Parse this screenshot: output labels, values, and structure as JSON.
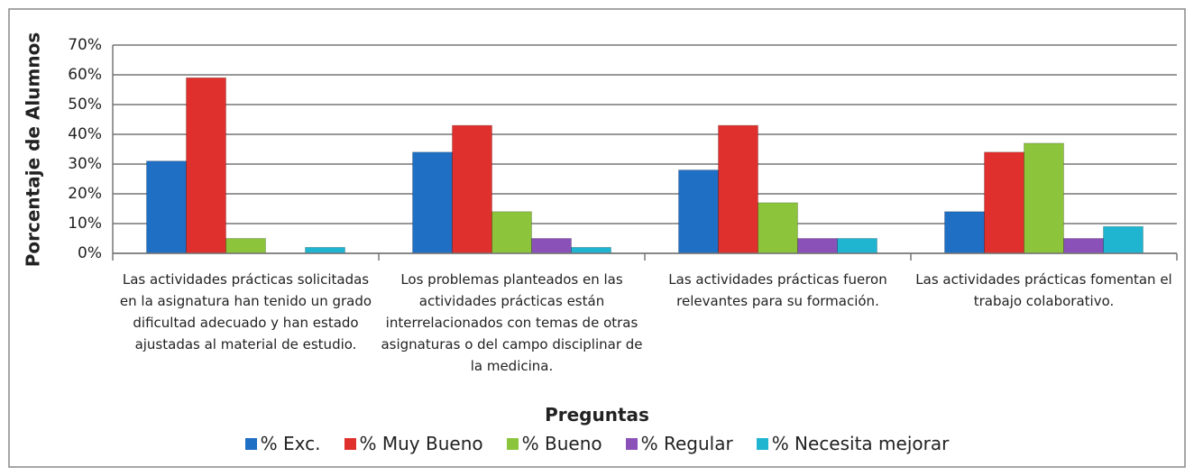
{
  "chart_data": {
    "type": "bar",
    "x_label": "Preguntas",
    "y_label": "Porcentaje de Alumnos",
    "categories": [
      "Las actividades prácticas solicitadas en la asignatura han tenido un grado dificultad adecuado y han estado ajustadas al material de estudio.",
      "Los problemas planteados en las actividades prácticas están interrelacionados con temas de otras asignaturas o del campo disciplinar de la medicina.",
      "Las actividades prácticas fueron relevantes para su formación.",
      "Las actividades prácticas fomentan el trabajo colaborativo."
    ],
    "series": [
      {
        "name": "% Exc.",
        "color": "#1f6fc5",
        "values": [
          31,
          34,
          28,
          14
        ]
      },
      {
        "name": "% Muy Bueno",
        "color": "#e0302d",
        "values": [
          59,
          43,
          43,
          34
        ]
      },
      {
        "name": "% Bueno",
        "color": "#8cc43c",
        "values": [
          5,
          14,
          17,
          37
        ]
      },
      {
        "name": "% Regular",
        "color": "#8a52b8",
        "values": [
          0,
          5,
          5,
          5
        ]
      },
      {
        "name": "% Necesita mejorar",
        "color": "#1fb5d0",
        "values": [
          2,
          2,
          5,
          9
        ]
      }
    ],
    "ylim": [
      0,
      70
    ],
    "yticks": [
      {
        "value": 0,
        "label": "0%"
      },
      {
        "value": 10,
        "label": "10%"
      },
      {
        "value": 20,
        "label": "20%"
      },
      {
        "value": 30,
        "label": "30%"
      },
      {
        "value": 40,
        "label": "40%"
      },
      {
        "value": 50,
        "label": "50%"
      },
      {
        "value": 60,
        "label": "60%"
      },
      {
        "value": 70,
        "label": "70%"
      }
    ],
    "grid": true,
    "legend": "bottom"
  }
}
